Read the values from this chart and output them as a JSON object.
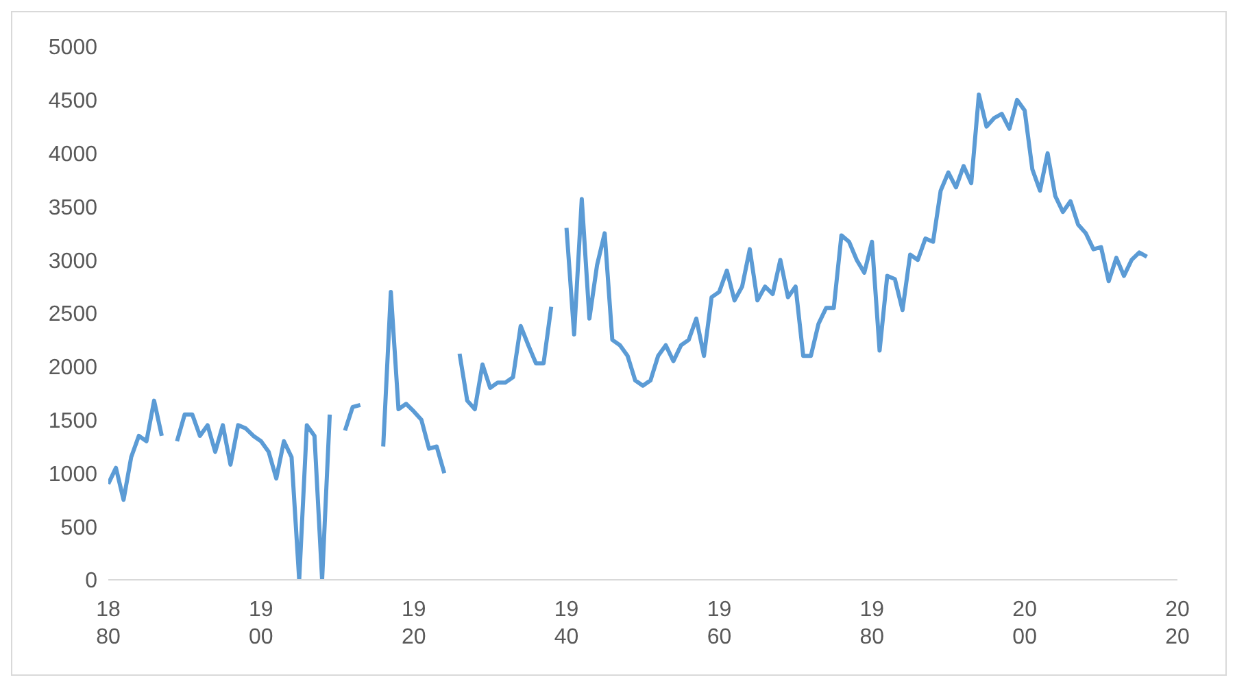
{
  "chart_data": {
    "type": "line",
    "x": [
      1880,
      1881,
      1882,
      1883,
      1884,
      1885,
      1886,
      1887,
      1888,
      1889,
      1890,
      1891,
      1892,
      1893,
      1894,
      1895,
      1896,
      1897,
      1898,
      1899,
      1900,
      1901,
      1902,
      1903,
      1904,
      1905,
      1906,
      1907,
      1908,
      1909,
      1910,
      1911,
      1912,
      1913,
      1914,
      1915,
      1916,
      1917,
      1918,
      1919,
      1920,
      1921,
      1922,
      1923,
      1924,
      1925,
      1926,
      1927,
      1928,
      1929,
      1930,
      1931,
      1932,
      1933,
      1934,
      1935,
      1936,
      1937,
      1938,
      1939,
      1940,
      1941,
      1942,
      1943,
      1944,
      1945,
      1946,
      1947,
      1948,
      1949,
      1950,
      1951,
      1952,
      1953,
      1954,
      1955,
      1956,
      1957,
      1958,
      1959,
      1960,
      1961,
      1962,
      1963,
      1964,
      1965,
      1966,
      1967,
      1968,
      1969,
      1970,
      1971,
      1972,
      1973,
      1974,
      1975,
      1976,
      1977,
      1978,
      1979,
      1980,
      1981,
      1982,
      1983,
      1984,
      1985,
      1986,
      1987,
      1988,
      1989,
      1990,
      1991,
      1992,
      1993,
      1994,
      1995,
      1996,
      1997,
      1998,
      1999,
      2000,
      2001,
      2002,
      2003,
      2004,
      2005,
      2006,
      2007,
      2008,
      2009,
      2010,
      2011,
      2012,
      2013,
      2014,
      2015,
      2016
    ],
    "series": [
      {
        "color": "#5b9bd5",
        "values": [
          900,
          1050,
          750,
          1150,
          1350,
          1300,
          1680,
          1350,
          null,
          1300,
          1550,
          1550,
          1350,
          1450,
          1200,
          1450,
          1080,
          1450,
          1420,
          1350,
          1300,
          1200,
          950,
          1300,
          1150,
          0,
          1450,
          1350,
          0,
          1550,
          null,
          1400,
          1620,
          1640,
          null,
          null,
          1250,
          2700,
          1600,
          1650,
          1580,
          1500,
          1230,
          1250,
          1000,
          null,
          2120,
          1680,
          1600,
          2020,
          1800,
          1850,
          1850,
          1900,
          2380,
          2200,
          2030,
          2030,
          2560,
          null,
          3300,
          2300,
          3570,
          2450,
          2950,
          3250,
          2250,
          2200,
          2100,
          1870,
          1820,
          1870,
          2100,
          2200,
          2050,
          2200,
          2250,
          2450,
          2100,
          2650,
          2700,
          2900,
          2620,
          2750,
          3100,
          2620,
          2750,
          2680,
          3000,
          2650,
          2750,
          2100,
          2100,
          2400,
          2550,
          2550,
          3230,
          3170,
          3000,
          2880,
          3170,
          2150,
          2850,
          2820,
          2530,
          3050,
          3000,
          3200,
          3170,
          3650,
          3820,
          3680,
          3880,
          3720,
          4550,
          4250,
          4330,
          4370,
          4230,
          4500,
          4400,
          3850,
          3650,
          4000,
          3600,
          3450,
          3550,
          3330,
          3250,
          3100,
          3120,
          2800,
          3020,
          2850,
          3000,
          3070,
          3030
        ]
      }
    ],
    "xlim": [
      1880,
      2020
    ],
    "xticks": [
      1880,
      1900,
      1920,
      1940,
      1960,
      1980,
      2000,
      2020
    ],
    "ylim": [
      0,
      5000
    ],
    "yticks": [
      0,
      500,
      1000,
      1500,
      2000,
      2500,
      3000,
      3500,
      4000,
      4500,
      5000
    ],
    "grid": false,
    "legend": false
  }
}
